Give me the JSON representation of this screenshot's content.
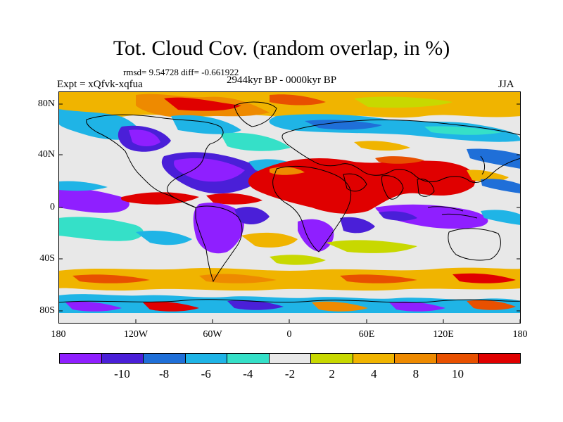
{
  "title": "Tot. Cloud Cov. (random overlap, in %)",
  "stats": "rmsd= 9.54728 diff= -0.661922",
  "experiment": "Expt = xQfvk-xqfua",
  "period": "2944kyr BP - 0000kyr BP",
  "season": "JJA",
  "axes": {
    "lat_labels": [
      "80N",
      "40N",
      "0",
      "40S",
      "80S"
    ],
    "lon_labels": [
      "180",
      "120W",
      "60W",
      "0",
      "60E",
      "120E",
      "180"
    ]
  },
  "colorbar": {
    "colors": [
      "#8f1fff",
      "#4a1fd8",
      "#1f6fd8",
      "#1fb4e6",
      "#35e0c8",
      "#e8e8e8",
      "#c8d800",
      "#f0b400",
      "#ee8a00",
      "#e85000",
      "#e00000"
    ],
    "labels": [
      "-10",
      "-8",
      "-6",
      "-4",
      "-2",
      "2",
      "4",
      "8",
      "10"
    ]
  }
}
